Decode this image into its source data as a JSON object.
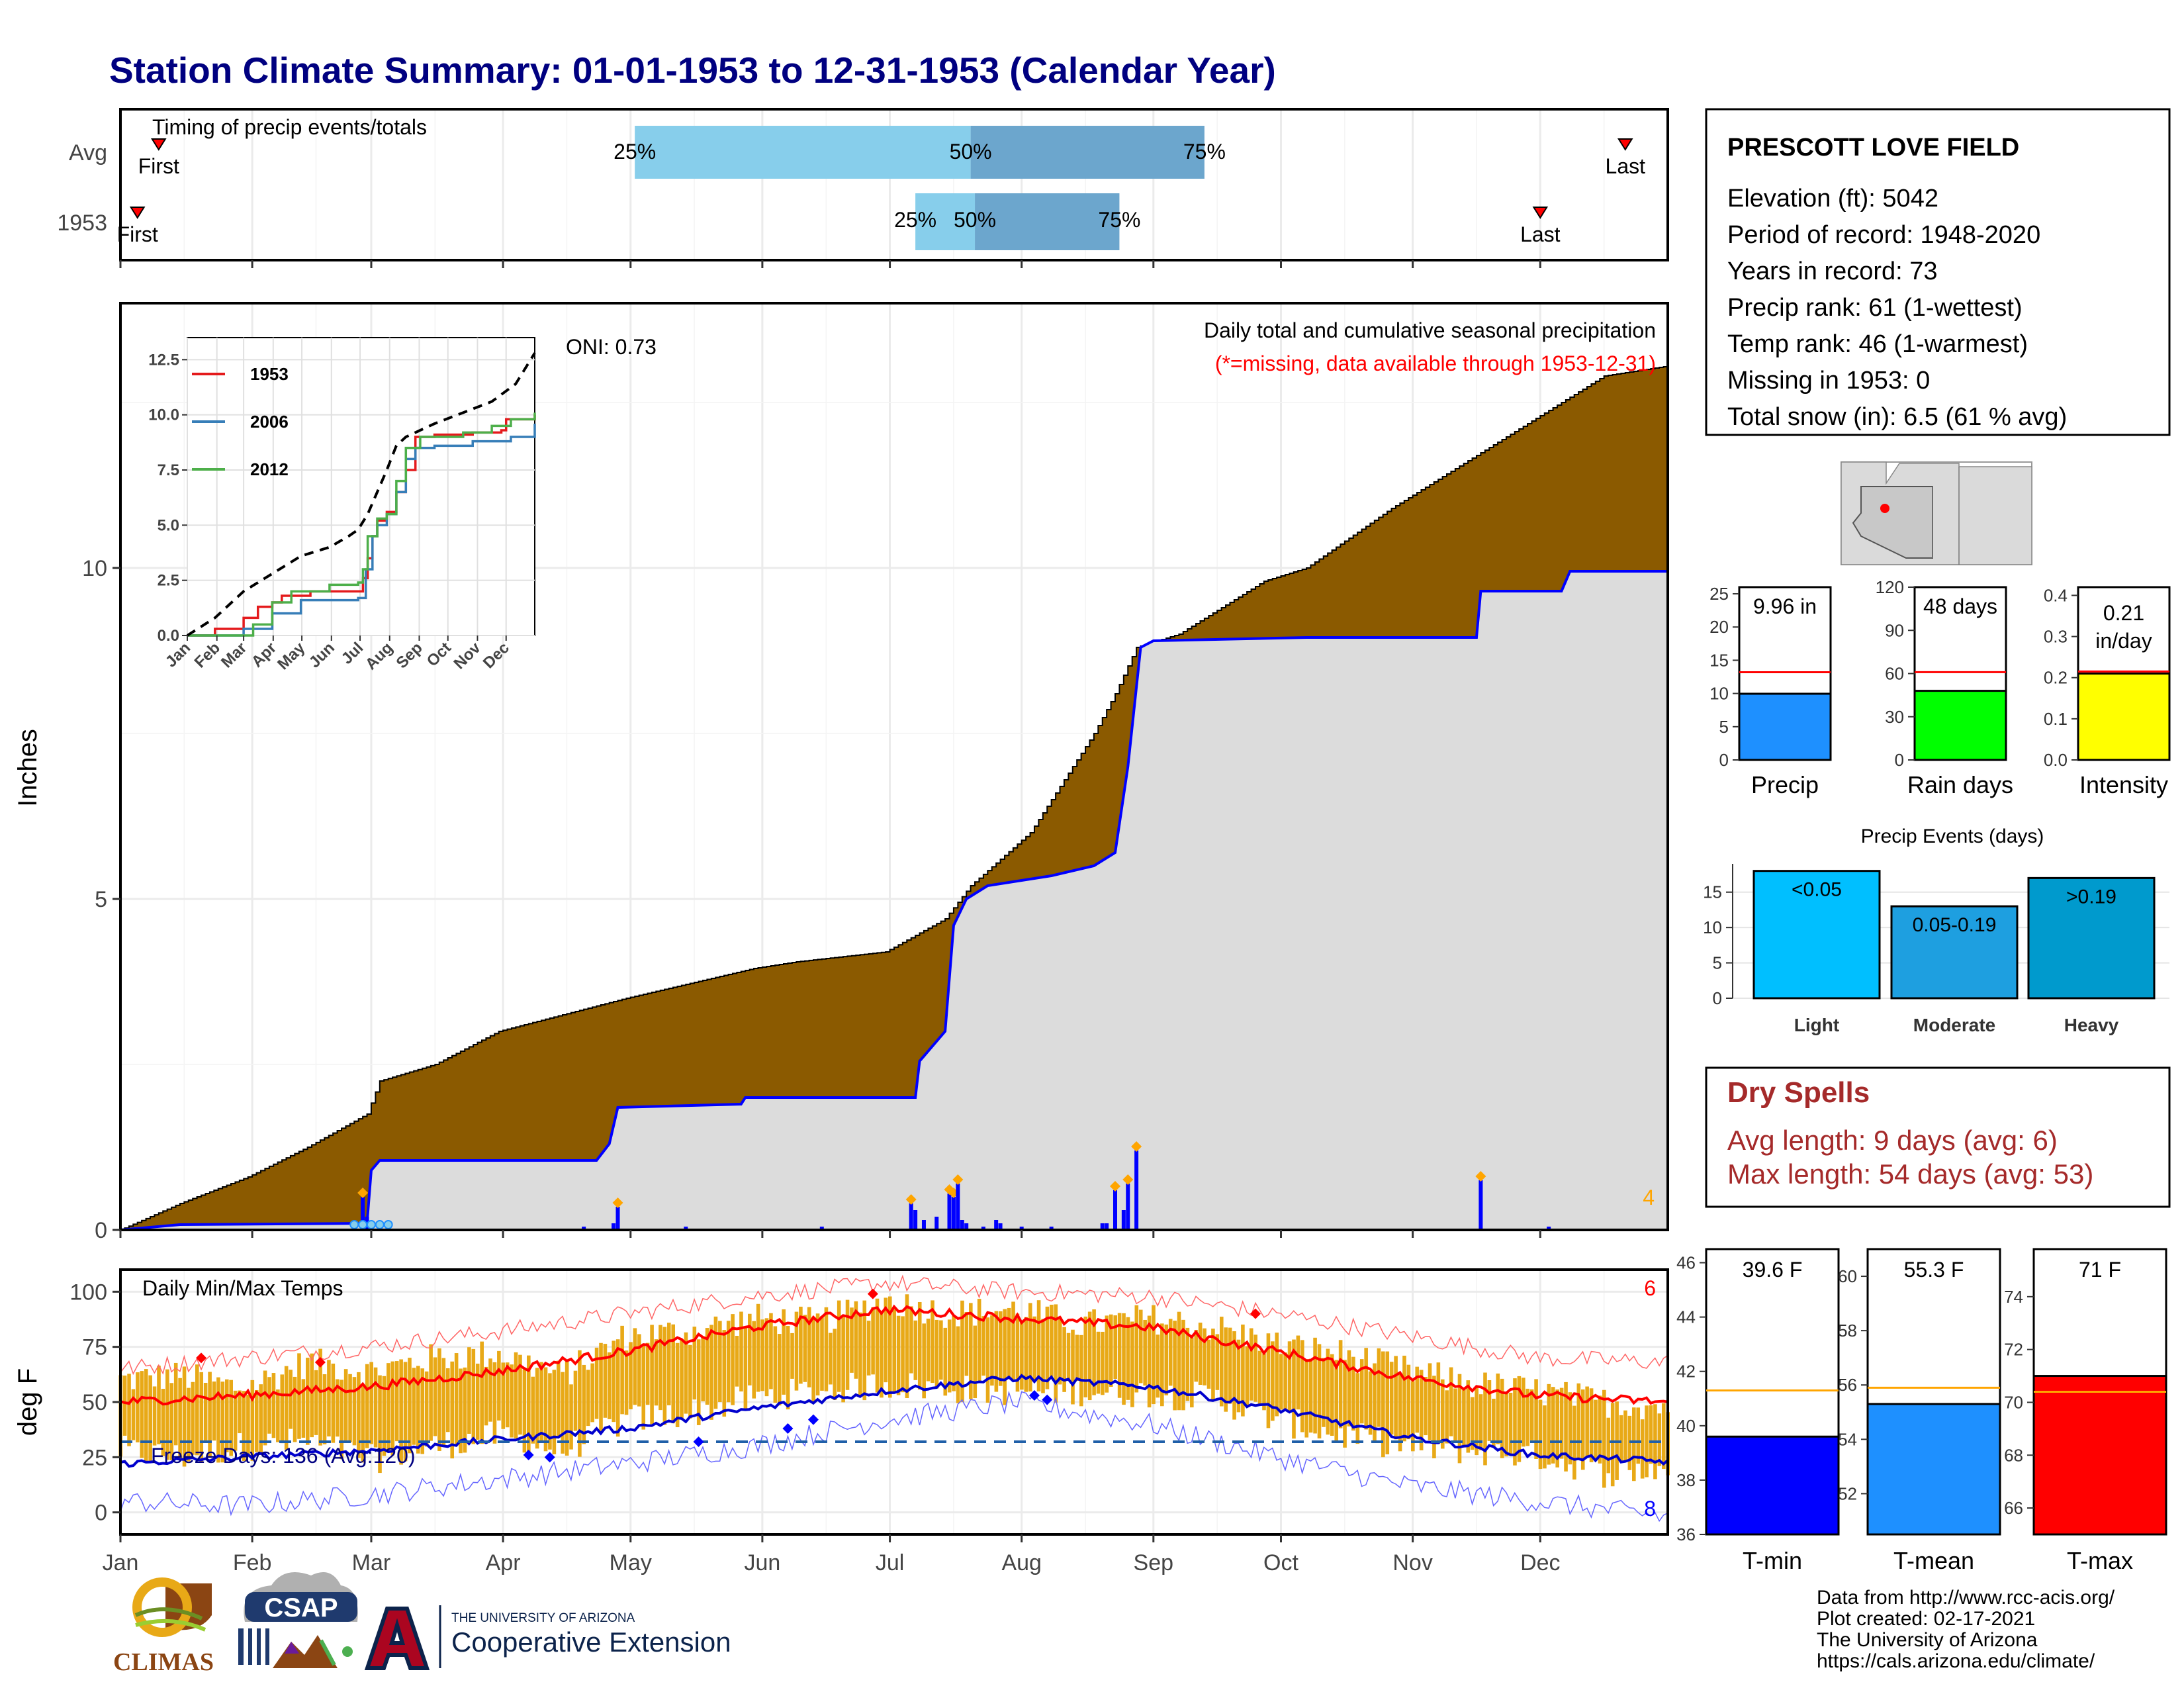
{
  "title": "Station Climate Summary: 01-01-1953 to 12-31-1953 (Calendar Year)",
  "months": [
    "Jan",
    "Feb",
    "Mar",
    "Apr",
    "May",
    "Jun",
    "Jul",
    "Aug",
    "Sep",
    "Oct",
    "Nov",
    "Dec"
  ],
  "colors": {
    "title": "#000080",
    "precip_fill": "#8B5A00",
    "avg_fill": "#DCDCDC",
    "avg_line": "#0000FF",
    "temp_band": "#E8A917",
    "tmax_line": "#FF0000",
    "tmin_line": "#0000CD",
    "dryspell": "#A52A2A"
  },
  "timing": {
    "title": "Timing of precip events/totals",
    "rows": [
      {
        "label": "Avg",
        "first_day": 10,
        "last_day": 355,
        "p25_day": 122,
        "p50_day": 201,
        "p75_day": 256,
        "first_label": "First",
        "last_label": "Last",
        "p25_label": "25%",
        "p50_label": "50%",
        "p75_label": "75%"
      },
      {
        "label": "1953",
        "first_day": 5,
        "last_day": 335,
        "p25_day": 188,
        "p50_day": 202,
        "p75_day": 236,
        "first_label": "First",
        "last_label": "Last",
        "p25_label": "25%",
        "p50_label": "50%",
        "p75_label": "75%"
      }
    ]
  },
  "precip": {
    "title": "Daily total and cumulative seasonal precipitation",
    "subtitle": "(*=missing, data available through 1953-12-31)",
    "oni": "ONI: 0.73",
    "ylabel": "Inches",
    "y_ticks": [
      0,
      5,
      10
    ],
    "corner_count": "4",
    "ylim": [
      0,
      14
    ],
    "observed_cumulative": [
      [
        1,
        0
      ],
      [
        15,
        0.4
      ],
      [
        31,
        0.8
      ],
      [
        45,
        1.25
      ],
      [
        59,
        1.75
      ],
      [
        62,
        2.25
      ],
      [
        75,
        2.5
      ],
      [
        90,
        3.0
      ],
      [
        120,
        3.5
      ],
      [
        150,
        3.95
      ],
      [
        160,
        4.05
      ],
      [
        181,
        4.2
      ],
      [
        195,
        4.7
      ],
      [
        201,
        5.2
      ],
      [
        215,
        6.0
      ],
      [
        230,
        7.5
      ],
      [
        235,
        8.1
      ],
      [
        240,
        8.8
      ],
      [
        250,
        9.0
      ],
      [
        270,
        9.8
      ],
      [
        280,
        10.0
      ],
      [
        300,
        10.9
      ],
      [
        315,
        11.5
      ],
      [
        335,
        12.3
      ],
      [
        350,
        12.9
      ],
      [
        365,
        13.05
      ]
    ],
    "average_cumulative": [
      [
        1,
        0
      ],
      [
        15,
        0.08
      ],
      [
        59,
        0.1
      ],
      [
        60,
        0.9
      ],
      [
        62,
        1.05
      ],
      [
        113,
        1.05
      ],
      [
        116,
        1.3
      ],
      [
        118,
        1.85
      ],
      [
        147,
        1.9
      ],
      [
        148,
        2.0
      ],
      [
        188,
        2.0
      ],
      [
        189,
        2.55
      ],
      [
        195,
        3.0
      ],
      [
        197,
        4.6
      ],
      [
        200,
        5.0
      ],
      [
        205,
        5.2
      ],
      [
        210,
        5.25
      ],
      [
        220,
        5.35
      ],
      [
        230,
        5.5
      ],
      [
        235,
        5.7
      ],
      [
        238,
        7.0
      ],
      [
        241,
        8.8
      ],
      [
        244,
        8.9
      ],
      [
        280,
        8.95
      ],
      [
        320,
        8.95
      ],
      [
        321,
        9.65
      ],
      [
        340,
        9.65
      ],
      [
        342,
        9.95
      ],
      [
        365,
        9.95
      ]
    ],
    "daily_bars": [
      [
        58,
        0.5
      ],
      [
        59,
        0.2
      ],
      [
        60,
        0.1
      ],
      [
        110,
        0.05
      ],
      [
        117,
        0.1
      ],
      [
        118,
        0.35
      ],
      [
        134,
        0.05
      ],
      [
        166,
        0.05
      ],
      [
        187,
        0.4
      ],
      [
        188,
        0.3
      ],
      [
        190,
        0.15
      ],
      [
        193,
        0.2
      ],
      [
        196,
        0.55
      ],
      [
        197,
        0.5
      ],
      [
        198,
        0.7
      ],
      [
        199,
        0.15
      ],
      [
        200,
        0.1
      ],
      [
        204,
        0.05
      ],
      [
        207,
        0.15
      ],
      [
        208,
        0.1
      ],
      [
        213,
        0.05
      ],
      [
        220,
        0.05
      ],
      [
        232,
        0.1
      ],
      [
        233,
        0.1
      ],
      [
        235,
        0.6
      ],
      [
        237,
        0.3
      ],
      [
        238,
        0.7
      ],
      [
        240,
        1.2
      ],
      [
        321,
        0.75
      ],
      [
        337,
        0.05
      ]
    ],
    "inset": {
      "y_ticks": [
        0.0,
        2.5,
        5.0,
        7.5,
        10.0,
        12.5
      ],
      "y_tick_labels": [
        "0.0",
        "2.5",
        "5.0",
        "7.5",
        "10.0",
        "12.5"
      ],
      "x_labels": [
        "Jan",
        "Feb",
        "Mar",
        "Apr",
        "May",
        "Jun",
        "Jul",
        "Aug",
        "Sep",
        "Oct",
        "Nov",
        "Dec"
      ],
      "series": [
        {
          "name": "1953",
          "color": "#E41A1C",
          "points": [
            [
              1,
              0
            ],
            [
              30,
              0.3
            ],
            [
              60,
              0.8
            ],
            [
              75,
              1.3
            ],
            [
              90,
              1.5
            ],
            [
              100,
              1.8
            ],
            [
              130,
              2.0
            ],
            [
              180,
              2.0
            ],
            [
              185,
              2.6
            ],
            [
              190,
              3.5
            ],
            [
              195,
              4.5
            ],
            [
              200,
              5.2
            ],
            [
              210,
              5.6
            ],
            [
              220,
              6.5
            ],
            [
              230,
              7.5
            ],
            [
              240,
              9.0
            ],
            [
              260,
              9.1
            ],
            [
              300,
              9.2
            ],
            [
              330,
              9.3
            ],
            [
              335,
              9.8
            ],
            [
              365,
              10.0
            ]
          ]
        },
        {
          "name": "2006",
          "color": "#377EB8",
          "points": [
            [
              1,
              0
            ],
            [
              60,
              0.3
            ],
            [
              90,
              1.0
            ],
            [
              120,
              1.6
            ],
            [
              180,
              1.7
            ],
            [
              188,
              3.0
            ],
            [
              195,
              4.5
            ],
            [
              200,
              5.0
            ],
            [
              210,
              5.5
            ],
            [
              220,
              6.5
            ],
            [
              230,
              8.0
            ],
            [
              240,
              8.5
            ],
            [
              260,
              8.6
            ],
            [
              300,
              8.8
            ],
            [
              340,
              9.0
            ],
            [
              365,
              9.6
            ]
          ]
        },
        {
          "name": "2012",
          "color": "#4DAF4A",
          "points": [
            [
              1,
              0
            ],
            [
              70,
              0.5
            ],
            [
              90,
              1.5
            ],
            [
              110,
              2.0
            ],
            [
              150,
              2.3
            ],
            [
              180,
              2.4
            ],
            [
              185,
              3.0
            ],
            [
              190,
              4.5
            ],
            [
              200,
              5.3
            ],
            [
              210,
              5.5
            ],
            [
              220,
              7.0
            ],
            [
              230,
              8.5
            ],
            [
              245,
              9.0
            ],
            [
              290,
              9.2
            ],
            [
              320,
              9.5
            ],
            [
              340,
              9.8
            ],
            [
              365,
              10.1
            ]
          ]
        },
        {
          "name": "avg",
          "color": "#000000",
          "points": [
            [
              1,
              0
            ],
            [
              30,
              0.8
            ],
            [
              60,
              2.0
            ],
            [
              90,
              2.8
            ],
            [
              120,
              3.6
            ],
            [
              150,
              4.0
            ],
            [
              170,
              4.5
            ],
            [
              180,
              4.8
            ],
            [
              190,
              5.5
            ],
            [
              200,
              6.5
            ],
            [
              210,
              7.5
            ],
            [
              220,
              8.6
            ],
            [
              230,
              9.0
            ],
            [
              260,
              9.6
            ],
            [
              290,
              10.1
            ],
            [
              320,
              10.6
            ],
            [
              345,
              11.4
            ],
            [
              365,
              12.8
            ]
          ]
        }
      ]
    }
  },
  "temps": {
    "title": "Daily Min/Max Temps",
    "ylabel": "deg F",
    "y_ticks": [
      0,
      25,
      50,
      75,
      100
    ],
    "ylim": [
      -10,
      110
    ],
    "freeze_line": 32,
    "freeze_label": "Freeze Days: 136 (Avg:120)",
    "corner_hi": "6",
    "corner_lo": "8",
    "avg_max": [
      [
        1,
        50
      ],
      [
        30,
        53
      ],
      [
        60,
        57
      ],
      [
        90,
        64
      ],
      [
        120,
        73
      ],
      [
        150,
        84
      ],
      [
        181,
        92
      ],
      [
        212,
        88
      ],
      [
        243,
        84
      ],
      [
        273,
        73
      ],
      [
        304,
        61
      ],
      [
        334,
        53
      ],
      [
        365,
        50
      ]
    ],
    "avg_min": [
      [
        1,
        22
      ],
      [
        30,
        25
      ],
      [
        60,
        28
      ],
      [
        90,
        33
      ],
      [
        120,
        38
      ],
      [
        150,
        47
      ],
      [
        181,
        55
      ],
      [
        212,
        61
      ],
      [
        243,
        57
      ],
      [
        273,
        47
      ],
      [
        304,
        34
      ],
      [
        334,
        26
      ],
      [
        365,
        23
      ]
    ],
    "rec_max": [
      [
        1,
        65
      ],
      [
        30,
        70
      ],
      [
        60,
        75
      ],
      [
        90,
        82
      ],
      [
        120,
        90
      ],
      [
        150,
        98
      ],
      [
        181,
        104
      ],
      [
        212,
        100
      ],
      [
        243,
        98
      ],
      [
        273,
        90
      ],
      [
        304,
        80
      ],
      [
        334,
        70
      ],
      [
        365,
        68
      ]
    ],
    "rec_min": [
      [
        1,
        5
      ],
      [
        30,
        3
      ],
      [
        60,
        8
      ],
      [
        90,
        15
      ],
      [
        120,
        22
      ],
      [
        150,
        30
      ],
      [
        181,
        42
      ],
      [
        212,
        50
      ],
      [
        243,
        40
      ],
      [
        273,
        25
      ],
      [
        304,
        12
      ],
      [
        334,
        5
      ],
      [
        365,
        -2
      ]
    ],
    "obs_max": [
      [
        1,
        60
      ],
      [
        15,
        62
      ],
      [
        30,
        56
      ],
      [
        45,
        68
      ],
      [
        60,
        64
      ],
      [
        75,
        70
      ],
      [
        90,
        72
      ],
      [
        105,
        62
      ],
      [
        120,
        80
      ],
      [
        135,
        82
      ],
      [
        150,
        88
      ],
      [
        165,
        86
      ],
      [
        181,
        96
      ],
      [
        196,
        90
      ],
      [
        212,
        92
      ],
      [
        227,
        85
      ],
      [
        243,
        88
      ],
      [
        258,
        84
      ],
      [
        273,
        76
      ],
      [
        288,
        72
      ],
      [
        304,
        64
      ],
      [
        319,
        58
      ],
      [
        334,
        55
      ],
      [
        350,
        50
      ],
      [
        365,
        48
      ]
    ],
    "obs_min": [
      [
        1,
        28
      ],
      [
        15,
        25
      ],
      [
        30,
        30
      ],
      [
        45,
        32
      ],
      [
        60,
        24
      ],
      [
        75,
        30
      ],
      [
        90,
        35
      ],
      [
        105,
        28
      ],
      [
        120,
        42
      ],
      [
        135,
        45
      ],
      [
        150,
        52
      ],
      [
        165,
        55
      ],
      [
        181,
        58
      ],
      [
        196,
        56
      ],
      [
        212,
        55
      ],
      [
        227,
        55
      ],
      [
        243,
        54
      ],
      [
        258,
        52
      ],
      [
        273,
        42
      ],
      [
        288,
        35
      ],
      [
        304,
        30
      ],
      [
        319,
        28
      ],
      [
        334,
        26
      ],
      [
        350,
        18
      ],
      [
        365,
        20
      ]
    ]
  },
  "station": {
    "name": "PRESCOTT LOVE FIELD",
    "lines": [
      "Elevation (ft): 5042",
      "Period of record: 1948-2020",
      "Years in record: 73",
      "Precip rank: 61 (1-wettest)",
      "Temp rank: 46 (1-warmest)",
      "Missing in 1953: 0",
      "Total snow (in): 6.5 (61 % avg)"
    ]
  },
  "summary_bars": [
    {
      "label": "Precip",
      "value_label": "9.96 in",
      "value": 9.96,
      "avg": 13.2,
      "ylim": [
        0,
        26
      ],
      "ticks": [
        0,
        5,
        10,
        15,
        20,
        25
      ],
      "color": "#1E90FF"
    },
    {
      "label": "Rain days",
      "value_label": "48 days",
      "value": 48,
      "avg": 61,
      "ylim": [
        0,
        120
      ],
      "ticks": [
        0,
        30,
        60,
        90,
        120
      ],
      "color": "#00FF00"
    },
    {
      "label": "Intensity",
      "value_label": "0.21 in/day",
      "value": 0.21,
      "avg": 0.215,
      "ylim": [
        0,
        0.42
      ],
      "ticks": [
        0.0,
        0.1,
        0.2,
        0.3,
        0.4
      ],
      "tick_labels": [
        "0.0",
        "0.1",
        "0.2",
        "0.3",
        "0.4"
      ],
      "color": "#FFFF00"
    }
  ],
  "precip_events": {
    "title": "Precip Events (days)",
    "ticks": [
      0,
      5,
      10,
      15
    ],
    "ylim": [
      0,
      19
    ],
    "categories": [
      "Light",
      "Moderate",
      "Heavy"
    ],
    "labels": [
      "<0.05",
      "0.05-0.19",
      ">0.19"
    ],
    "values": [
      18,
      13,
      17
    ],
    "colors": [
      "#00BFFF",
      "#1E9FE0",
      "#009ACD"
    ]
  },
  "dry_spells": {
    "title": "Dry Spells",
    "avg_line": "Avg length: 9 days (avg: 6)",
    "max_line": "Max length: 54 days (avg: 53)"
  },
  "temp_bars": [
    {
      "label": "T-min",
      "value_label": "39.6 F",
      "value": 39.6,
      "avg": 41.3,
      "ylim": [
        36,
        46.5
      ],
      "ticks": [
        36,
        38,
        40,
        42,
        44,
        46
      ],
      "color": "#0000FF"
    },
    {
      "label": "T-mean",
      "value_label": "55.3 F",
      "value": 55.3,
      "avg": 55.9,
      "ylim": [
        50.5,
        61
      ],
      "ticks": [
        52,
        54,
        56,
        58,
        60
      ],
      "color": "#1E90FF"
    },
    {
      "label": "T-max",
      "value_label": "71 F",
      "value": 71.0,
      "avg": 70.4,
      "ylim": [
        65,
        75.8
      ],
      "ticks": [
        66,
        68,
        70,
        72,
        74
      ],
      "color": "#FF0000"
    }
  ],
  "credits": [
    "Data from http://www.rcc-acis.org/",
    "Plot created: 02-17-2021",
    "The University of Arizona",
    "https://cals.arizona.edu/climate/"
  ],
  "logos": {
    "climas": "CLIMAS",
    "csap": "CSAP",
    "ua_small": "THE UNIVERSITY OF ARIZONA",
    "coop": "Cooperative Extension"
  }
}
